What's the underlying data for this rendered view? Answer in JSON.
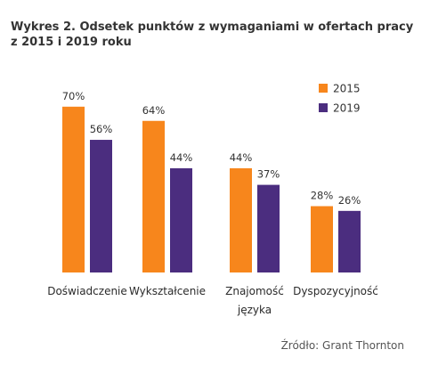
{
  "title_line1": "Wykres 2. Odsetek punktów z wymaganiami w ofertach pracy",
  "title_line2": "z 2015 i 2019 roku",
  "source": "Źródło: Grant Thornton",
  "chart_data": {
    "type": "bar",
    "categories": [
      "Doświadczenie",
      "Wykształcenie",
      "Znajomość języka",
      "Dyspozycyjność"
    ],
    "category_lines": [
      [
        "Doświadczenie"
      ],
      [
        "Wykształcenie"
      ],
      [
        "Znajomość",
        "języka"
      ],
      [
        "Dyspozycyjność"
      ]
    ],
    "series": [
      {
        "name": "2015",
        "values": [
          70,
          64,
          44,
          28
        ],
        "labels": [
          "70%",
          "64%",
          "44%",
          "28%"
        ],
        "color": "#F7861C"
      },
      {
        "name": "2019",
        "values": [
          56,
          44,
          37,
          26
        ],
        "labels": [
          "56%",
          "44%",
          "37%",
          "26%"
        ],
        "color": "#4B2D7F"
      }
    ],
    "ylim": [
      0,
      100
    ],
    "grid": false,
    "legend": "top-right"
  }
}
